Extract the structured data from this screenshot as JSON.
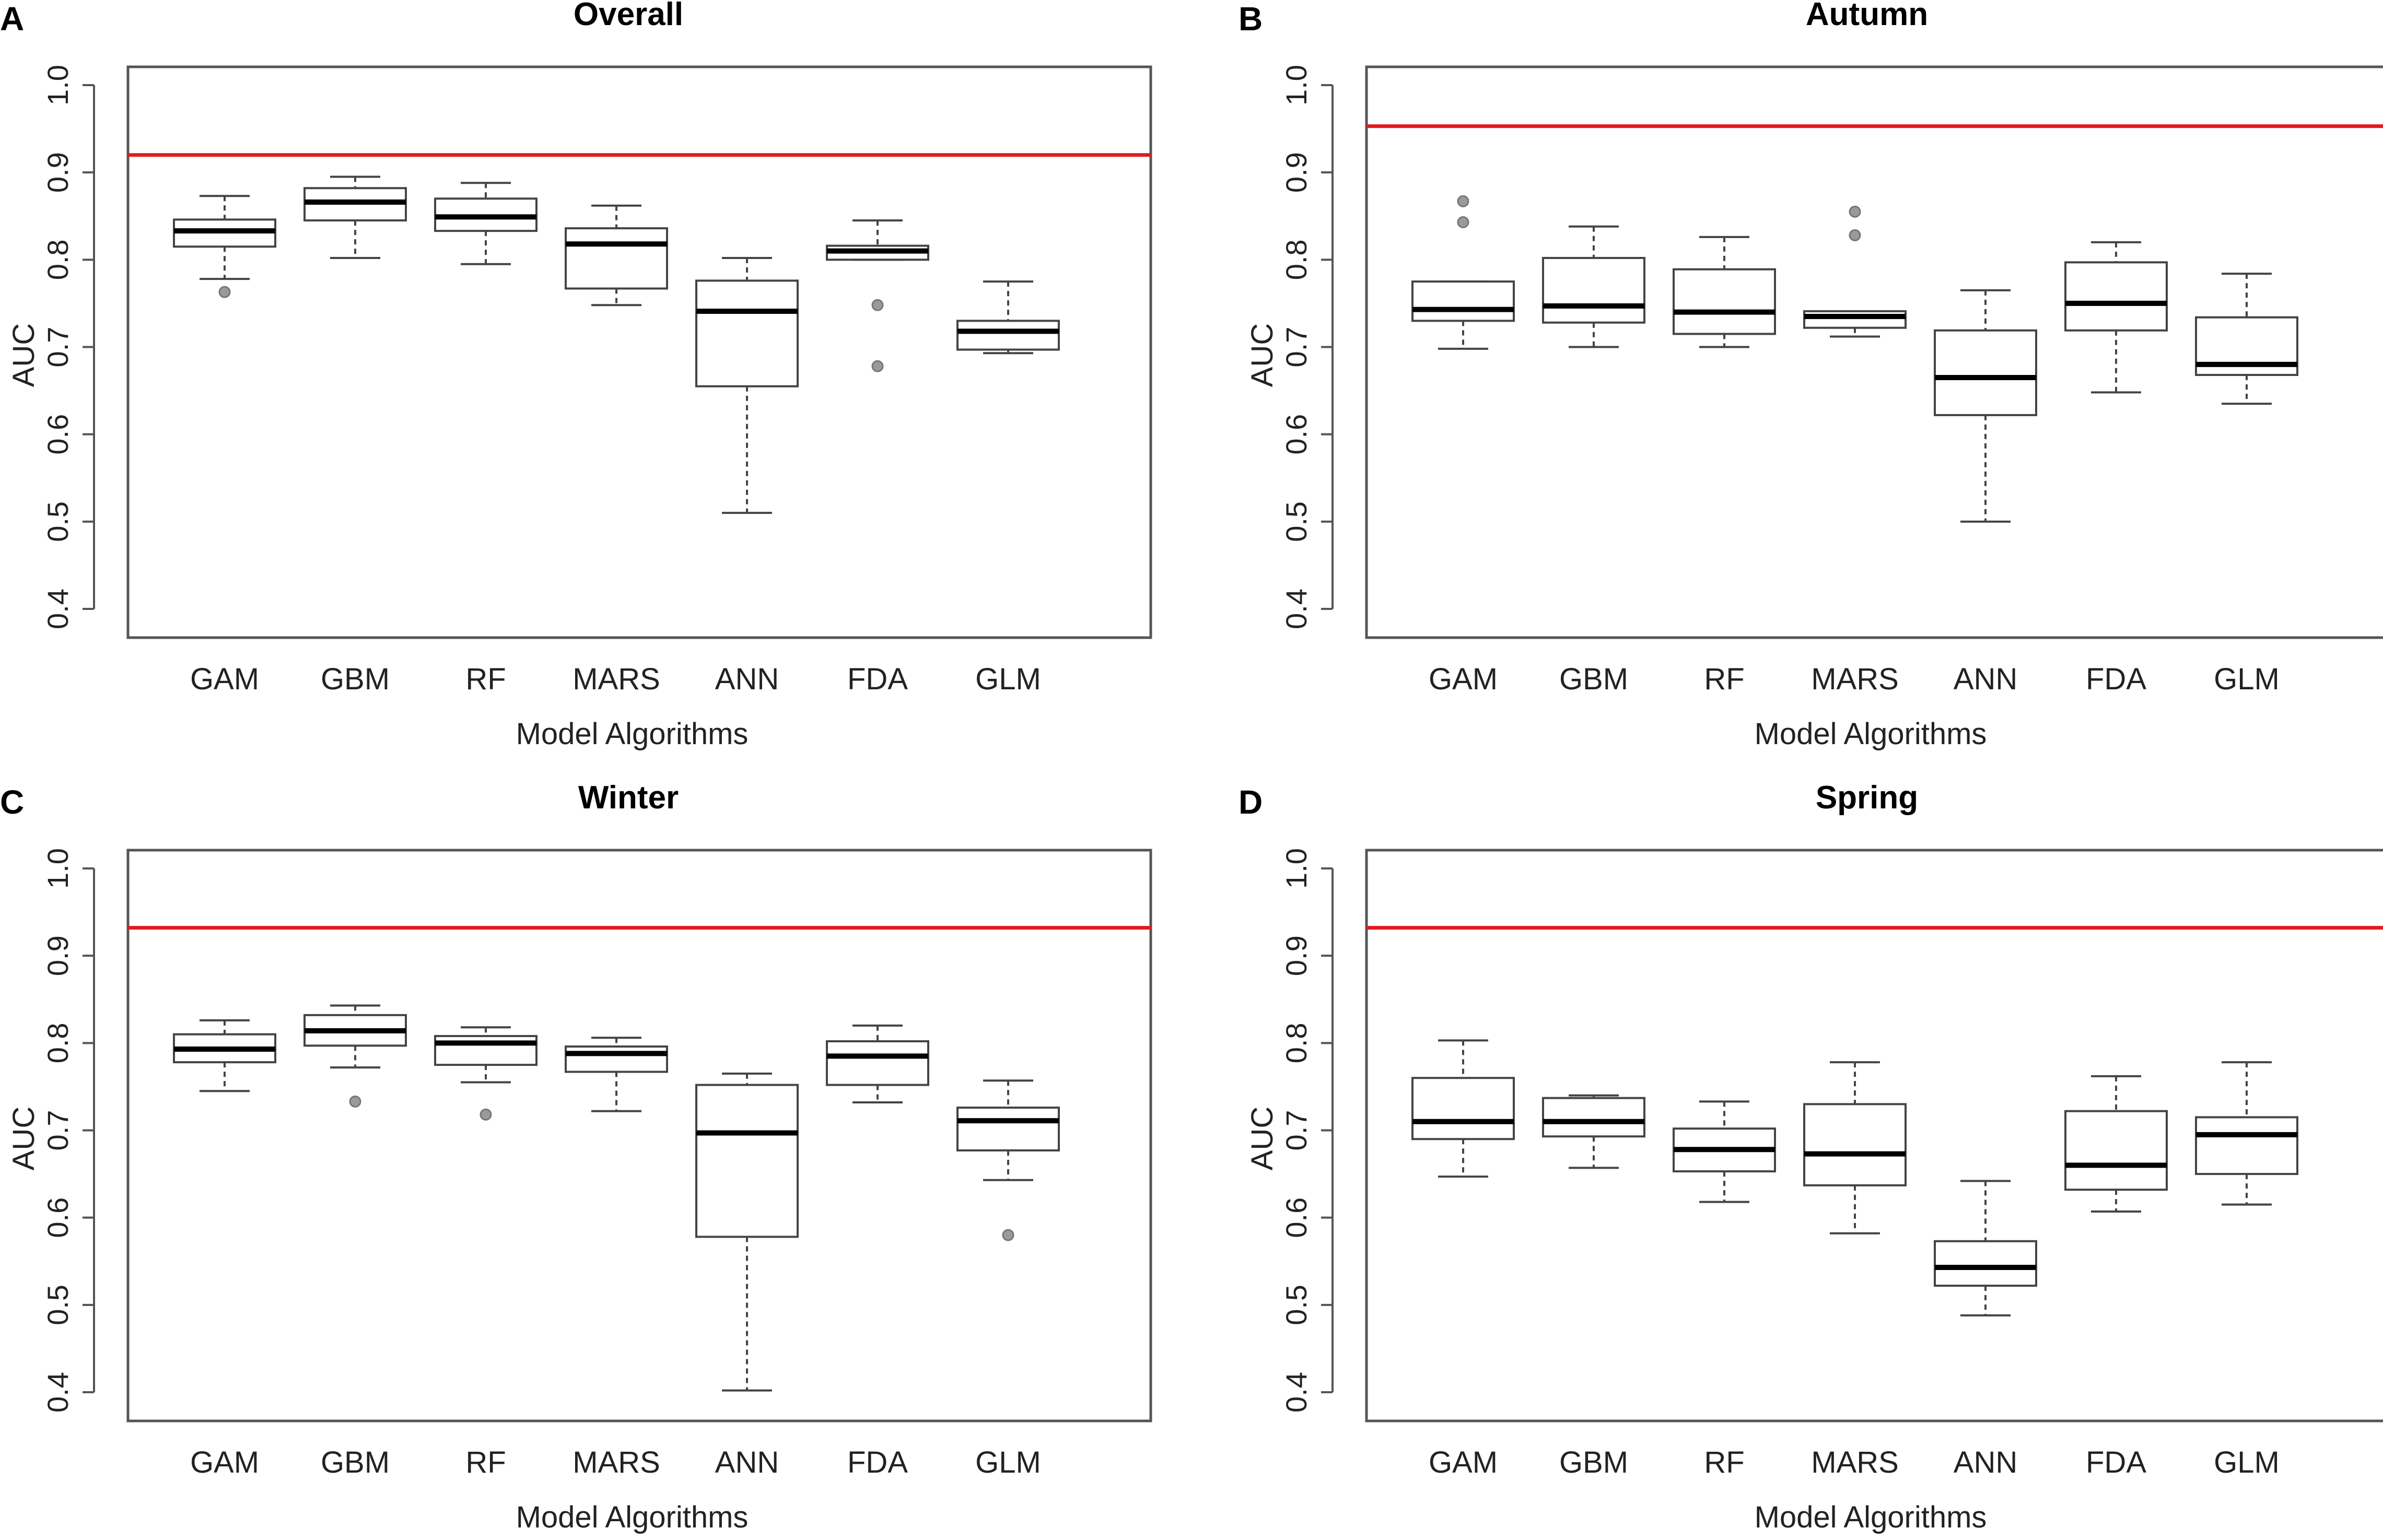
{
  "chart_data": [
    {
      "panel": "A",
      "type": "box",
      "title": "Overall",
      "xlabel": "Model Algorithms",
      "ylabel": "AUC",
      "ylim": [
        0.4,
        1.0
      ],
      "yticks": [
        "0.4",
        "0.5",
        "0.6",
        "0.7",
        "0.8",
        "0.9",
        "1.0"
      ],
      "categories": [
        "GAM",
        "GBM",
        "RF",
        "MARS",
        "ANN",
        "FDA",
        "GLM"
      ],
      "reference_line": 0.92,
      "reference_color": "#e31a1c",
      "boxes": [
        {
          "min": 0.778,
          "q1": 0.815,
          "median": 0.833,
          "q3": 0.846,
          "max": 0.873,
          "outliers": [
            0.763
          ]
        },
        {
          "min": 0.802,
          "q1": 0.845,
          "median": 0.866,
          "q3": 0.882,
          "max": 0.895,
          "outliers": []
        },
        {
          "min": 0.795,
          "q1": 0.833,
          "median": 0.849,
          "q3": 0.87,
          "max": 0.888,
          "outliers": []
        },
        {
          "min": 0.748,
          "q1": 0.767,
          "median": 0.818,
          "q3": 0.836,
          "max": 0.862,
          "outliers": []
        },
        {
          "min": 0.51,
          "q1": 0.655,
          "median": 0.741,
          "q3": 0.776,
          "max": 0.802,
          "outliers": []
        },
        {
          "min": 0.8,
          "q1": 0.8,
          "median": 0.81,
          "q3": 0.816,
          "max": 0.845,
          "outliers": [
            0.748,
            0.678
          ]
        },
        {
          "min": 0.693,
          "q1": 0.697,
          "median": 0.718,
          "q3": 0.73,
          "max": 0.775,
          "outliers": []
        }
      ]
    },
    {
      "panel": "B",
      "type": "box",
      "title": "Autumn",
      "xlabel": "Model Algorithms",
      "ylabel": "AUC",
      "ylim": [
        0.4,
        1.0
      ],
      "yticks": [
        "0.4",
        "0.5",
        "0.6",
        "0.7",
        "0.8",
        "0.9",
        "1.0"
      ],
      "categories": [
        "GAM",
        "GBM",
        "RF",
        "MARS",
        "ANN",
        "FDA",
        "GLM"
      ],
      "reference_line": 0.953,
      "reference_color": "#e31a1c",
      "boxes": [
        {
          "min": 0.698,
          "q1": 0.73,
          "median": 0.743,
          "q3": 0.775,
          "max": 0.775,
          "outliers": [
            0.867,
            0.843
          ]
        },
        {
          "min": 0.7,
          "q1": 0.728,
          "median": 0.747,
          "q3": 0.802,
          "max": 0.838,
          "outliers": []
        },
        {
          "min": 0.7,
          "q1": 0.715,
          "median": 0.74,
          "q3": 0.789,
          "max": 0.826,
          "outliers": []
        },
        {
          "min": 0.712,
          "q1": 0.722,
          "median": 0.735,
          "q3": 0.741,
          "max": 0.741,
          "outliers": [
            0.855,
            0.828
          ]
        },
        {
          "min": 0.5,
          "q1": 0.622,
          "median": 0.665,
          "q3": 0.719,
          "max": 0.765,
          "outliers": []
        },
        {
          "min": 0.648,
          "q1": 0.719,
          "median": 0.75,
          "q3": 0.797,
          "max": 0.82,
          "outliers": []
        },
        {
          "min": 0.635,
          "q1": 0.668,
          "median": 0.68,
          "q3": 0.734,
          "max": 0.784,
          "outliers": []
        }
      ]
    },
    {
      "panel": "C",
      "type": "box",
      "title": "Winter",
      "xlabel": "Model Algorithms",
      "ylabel": "AUC",
      "ylim": [
        0.4,
        1.0
      ],
      "yticks": [
        "0.4",
        "0.5",
        "0.6",
        "0.7",
        "0.8",
        "0.9",
        "1.0"
      ],
      "categories": [
        "GAM",
        "GBM",
        "RF",
        "MARS",
        "ANN",
        "FDA",
        "GLM"
      ],
      "reference_line": 0.932,
      "reference_color": "#e31a1c",
      "boxes": [
        {
          "min": 0.745,
          "q1": 0.778,
          "median": 0.793,
          "q3": 0.81,
          "max": 0.826,
          "outliers": []
        },
        {
          "min": 0.772,
          "q1": 0.797,
          "median": 0.814,
          "q3": 0.832,
          "max": 0.843,
          "outliers": [
            0.733
          ]
        },
        {
          "min": 0.755,
          "q1": 0.775,
          "median": 0.8,
          "q3": 0.808,
          "max": 0.818,
          "outliers": [
            0.718
          ]
        },
        {
          "min": 0.722,
          "q1": 0.767,
          "median": 0.788,
          "q3": 0.796,
          "max": 0.806,
          "outliers": []
        },
        {
          "min": 0.402,
          "q1": 0.578,
          "median": 0.697,
          "q3": 0.752,
          "max": 0.765,
          "outliers": []
        },
        {
          "min": 0.732,
          "q1": 0.752,
          "median": 0.785,
          "q3": 0.802,
          "max": 0.82,
          "outliers": []
        },
        {
          "min": 0.643,
          "q1": 0.677,
          "median": 0.711,
          "q3": 0.726,
          "max": 0.757,
          "outliers": [
            0.58
          ]
        }
      ]
    },
    {
      "panel": "D",
      "type": "box",
      "title": "Spring",
      "xlabel": "Model Algorithms",
      "ylabel": "AUC",
      "ylim": [
        0.4,
        1.0
      ],
      "yticks": [
        "0.4",
        "0.5",
        "0.6",
        "0.7",
        "0.8",
        "0.9",
        "1.0"
      ],
      "categories": [
        "GAM",
        "GBM",
        "RF",
        "MARS",
        "ANN",
        "FDA",
        "GLM"
      ],
      "reference_line": 0.932,
      "reference_color": "#e31a1c",
      "boxes": [
        {
          "min": 0.647,
          "q1": 0.69,
          "median": 0.71,
          "q3": 0.76,
          "max": 0.803,
          "outliers": []
        },
        {
          "min": 0.657,
          "q1": 0.693,
          "median": 0.71,
          "q3": 0.737,
          "max": 0.74,
          "outliers": []
        },
        {
          "min": 0.618,
          "q1": 0.653,
          "median": 0.678,
          "q3": 0.702,
          "max": 0.733,
          "outliers": []
        },
        {
          "min": 0.582,
          "q1": 0.637,
          "median": 0.673,
          "q3": 0.73,
          "max": 0.778,
          "outliers": []
        },
        {
          "min": 0.488,
          "q1": 0.522,
          "median": 0.543,
          "q3": 0.573,
          "max": 0.642,
          "outliers": []
        },
        {
          "min": 0.607,
          "q1": 0.632,
          "median": 0.66,
          "q3": 0.722,
          "max": 0.762,
          "outliers": []
        },
        {
          "min": 0.615,
          "q1": 0.65,
          "median": 0.695,
          "q3": 0.715,
          "max": 0.778,
          "outliers": []
        }
      ]
    }
  ]
}
